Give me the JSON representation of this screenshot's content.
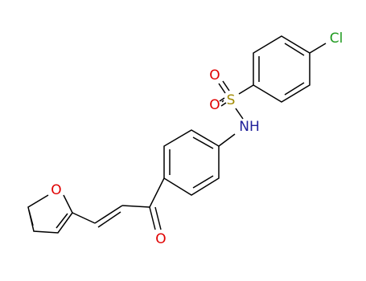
{
  "atoms": [
    {
      "label": "Cl"
    },
    {
      "label": "S"
    },
    {
      "label": "O"
    },
    {
      "label": "O"
    },
    {
      "label": "NH"
    },
    {
      "label": "O"
    },
    {
      "label": "O"
    }
  ]
}
